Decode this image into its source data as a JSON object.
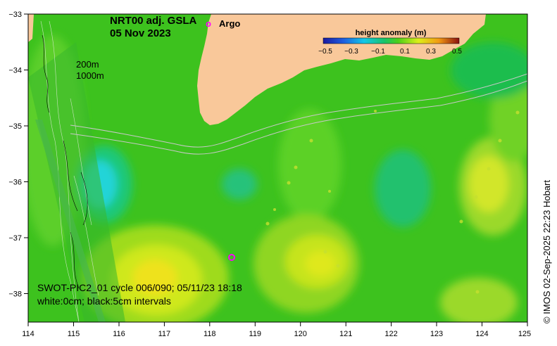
{
  "map": {
    "title_line1": "NRT00 adj. GSLA",
    "title_line2": "05 Nov 2023",
    "legend_argo_symbol": "o",
    "legend_argo_label": "Argo",
    "depth_label_1": "200m",
    "depth_label_2": "1000m",
    "swot_line1": "SWOT-PIC2_01 cycle 006/090; 05/11/23 18:18",
    "swot_line2": "white:0cm; black:5cm intervals",
    "credit": "© IMOS 02-Sep-2025 22:23 Hobart",
    "x_ticks": [
      "114",
      "115",
      "116",
      "117",
      "118",
      "119",
      "120",
      "121",
      "122",
      "123",
      "124",
      "125"
    ],
    "y_ticks": [
      "−33",
      "−34",
      "−35",
      "−36",
      "−37",
      "−38"
    ],
    "colorbar": {
      "title": "height anomaly (m)",
      "ticks": [
        "−0.5",
        "−0.3",
        "−0.1",
        "0.1",
        "0.3",
        "0.5"
      ]
    },
    "colors": {
      "land": "#f9c89a",
      "background_anomaly": "#3dc21e",
      "argo_marker": "#ff00ff"
    }
  }
}
